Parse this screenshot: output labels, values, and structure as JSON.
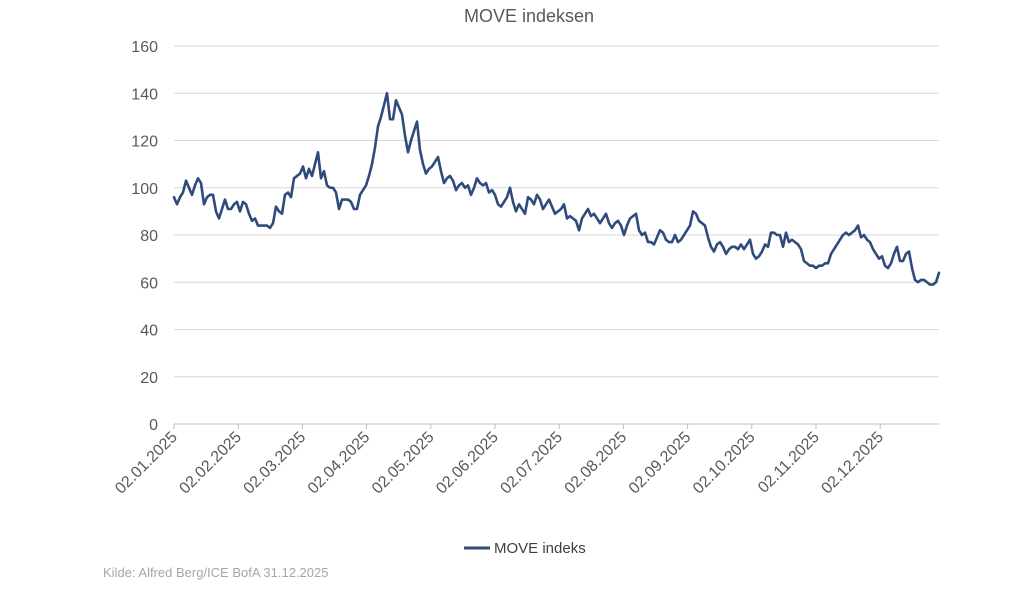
{
  "chart_data": {
    "type": "line",
    "title": "MOVE indeksen",
    "xlabel": "",
    "ylabel": "",
    "ylim": [
      0,
      160
    ],
    "yticks": [
      0,
      20,
      40,
      60,
      80,
      100,
      120,
      140,
      160
    ],
    "xticks": [
      "02.01.2025",
      "02.02.2025",
      "02.03.2025",
      "02.04.2025",
      "02.05.2025",
      "02.06.2025",
      "02.07.2025",
      "02.08.2025",
      "02.09.2025",
      "02.10.2025",
      "02.11.2025",
      "02.12.2025"
    ],
    "grid": true,
    "legend_position": "bottom-center",
    "series": [
      {
        "name": "MOVE indeks",
        "color": "#2f4b7c",
        "values": [
          96,
          93,
          96,
          98,
          103,
          100,
          97,
          101,
          104,
          102,
          93,
          96,
          97,
          97,
          90,
          87,
          91,
          95,
          91,
          91,
          93,
          94,
          90,
          94,
          93,
          89,
          86,
          87,
          84,
          84,
          84,
          84,
          83,
          85,
          92,
          90,
          89,
          97,
          98,
          96,
          104,
          105,
          106,
          109,
          104,
          108,
          105,
          110,
          115,
          104,
          107,
          101,
          100,
          100,
          98,
          91,
          95,
          95,
          95,
          94,
          91,
          91,
          97,
          99,
          101,
          105,
          110,
          117,
          126,
          130,
          135,
          140,
          129,
          129,
          137,
          134,
          131,
          122,
          115,
          120,
          124,
          128,
          116,
          110,
          106,
          108,
          109,
          111,
          113,
          107,
          102,
          104,
          105,
          103,
          99,
          101,
          102,
          100,
          101,
          97,
          100,
          104,
          102,
          101,
          102,
          98,
          99,
          97,
          93,
          92,
          94,
          96,
          100,
          94,
          90,
          93,
          91,
          89,
          96,
          95,
          93,
          97,
          95,
          91,
          93,
          95,
          92,
          89,
          90,
          91,
          93,
          87,
          88,
          87,
          86,
          82,
          87,
          89,
          91,
          88,
          89,
          87,
          85,
          87,
          89,
          85,
          83,
          85,
          86,
          84,
          80,
          84,
          87,
          88,
          89,
          82,
          80,
          81,
          77,
          77,
          76,
          79,
          82,
          81,
          78,
          77,
          77,
          80,
          77,
          78,
          80,
          82,
          84,
          90,
          89,
          86,
          85,
          84,
          79,
          75,
          73,
          76,
          77,
          75,
          72,
          74,
          75,
          75,
          74,
          76,
          74,
          76,
          78,
          72,
          70,
          71,
          73,
          76,
          75,
          81,
          81,
          80,
          80,
          75,
          81,
          77,
          78,
          77,
          76,
          74,
          69,
          68,
          67,
          67,
          66,
          67,
          67,
          68,
          68,
          72,
          74,
          76,
          78,
          80,
          81,
          80,
          81,
          82,
          84,
          79,
          80,
          78,
          77,
          74,
          72,
          70,
          71,
          67,
          66,
          68,
          72,
          75,
          69,
          69,
          72,
          73,
          66,
          61,
          60,
          61,
          61,
          60,
          59,
          59,
          60,
          64
        ]
      }
    ]
  },
  "legend": {
    "label": "MOVE indeks"
  },
  "source": "Kilde: Alfred Berg/ICE BofA 31.12.2025"
}
